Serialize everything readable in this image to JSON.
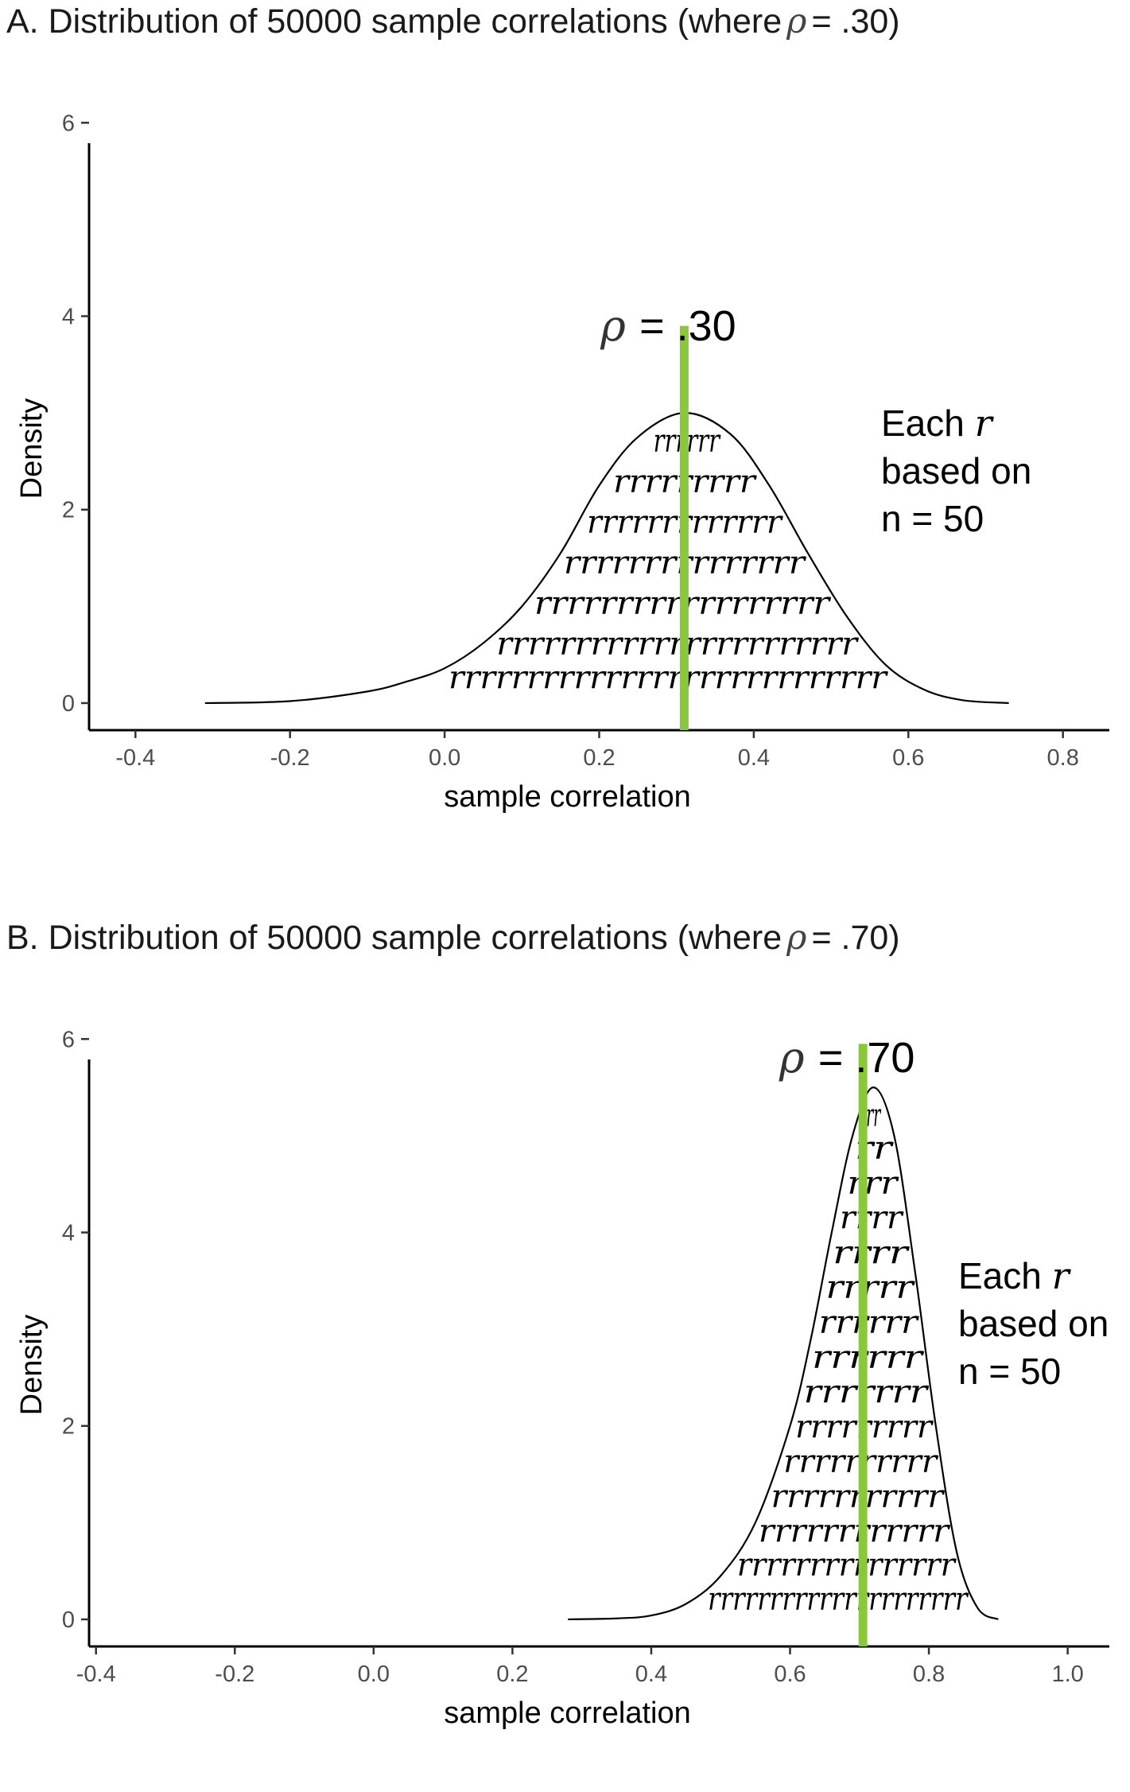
{
  "panels": [
    {
      "title_prefix": "A. Distribution of 50000 sample correlations (where",
      "title_rho": "ρ",
      "title_suffix": "= .30)"
    },
    {
      "title_prefix": "B. Distribution of 50000 sample correlations (where",
      "title_rho": "ρ",
      "title_suffix": "= .70)"
    }
  ],
  "chart_data": [
    {
      "type": "area",
      "xlabel": "sample correlation",
      "ylabel": "Density",
      "xlim": [
        -0.46,
        0.86
      ],
      "ylim": [
        -0.28,
        6.2
      ],
      "xticks": [
        "-0.4",
        "-0.2",
        "0.0",
        "0.2",
        "0.4",
        "0.6",
        "0.8"
      ],
      "xtick_values": [
        -0.4,
        -0.2,
        0.0,
        0.2,
        0.4,
        0.6,
        0.8
      ],
      "yticks": [
        "0",
        "2",
        "4",
        "6"
      ],
      "ytick_values": [
        0,
        2,
        4,
        6
      ],
      "grid": false,
      "rho": 0.31,
      "rho_label_symbol": "ρ",
      "rho_label_text": "= .30",
      "vline_top": 3.9,
      "vline_color": "#8cc63f",
      "density": {
        "x": [
          -0.31,
          -0.2,
          -0.1,
          -0.05,
          0.0,
          0.05,
          0.1,
          0.15,
          0.2,
          0.25,
          0.31,
          0.37,
          0.42,
          0.47,
          0.52,
          0.57,
          0.62,
          0.67,
          0.73
        ],
        "y": [
          0.0,
          0.02,
          0.12,
          0.22,
          0.36,
          0.62,
          1.0,
          1.55,
          2.25,
          2.75,
          3.0,
          2.78,
          2.25,
          1.55,
          0.9,
          0.4,
          0.14,
          0.03,
          0.0
        ]
      },
      "r_rows": [
        {
          "text": "rrrrrrrrrrrrrrrrrrrrrrrrrrrr",
          "y": 0.15
        },
        {
          "text": "rrrrrrrrrrrrrrrrrrrrrrr",
          "y": 0.5
        },
        {
          "text": "rrrrrrrrrrrrrrrrrr",
          "y": 0.92
        },
        {
          "text": "rrrrrrrrrrrrrrr",
          "y": 1.34
        },
        {
          "text": "rrrrrrrrrrrrr",
          "y": 1.76
        },
        {
          "text": "rrrrrrrrr",
          "y": 2.18
        },
        {
          "text": "rrrrrr",
          "y": 2.6
        }
      ],
      "annotation": {
        "line1_prefix": "Each",
        "line1_r": "r",
        "line2": "based on",
        "line3": "n = 50"
      }
    },
    {
      "type": "area",
      "xlabel": "sample correlation",
      "ylabel": "Density",
      "xlim": [
        -0.41,
        1.06
      ],
      "ylim": [
        -0.28,
        6.2
      ],
      "xticks": [
        "-0.4",
        "-0.2",
        "0.0",
        "0.2",
        "0.4",
        "0.6",
        "0.8",
        "1.0"
      ],
      "xtick_values": [
        -0.4,
        -0.2,
        0.0,
        0.2,
        0.4,
        0.6,
        0.8,
        1.0
      ],
      "yticks": [
        "0",
        "2",
        "4",
        "6"
      ],
      "ytick_values": [
        0,
        2,
        4,
        6
      ],
      "grid": false,
      "rho": 0.705,
      "rho_label_symbol": "ρ",
      "rho_label_text": "= .70",
      "vline_top": 5.95,
      "vline_color": "#8cc63f",
      "density": {
        "x": [
          0.28,
          0.35,
          0.4,
          0.45,
          0.5,
          0.55,
          0.6,
          0.63,
          0.66,
          0.69,
          0.72,
          0.75,
          0.78,
          0.81,
          0.84,
          0.87,
          0.9
        ],
        "y": [
          0.0,
          0.01,
          0.04,
          0.16,
          0.45,
          1.0,
          2.0,
          2.9,
          4.0,
          5.0,
          5.5,
          5.0,
          3.6,
          2.0,
          0.7,
          0.12,
          0.0
        ]
      },
      "r_rows": [
        {
          "text": "rrrrrrrrrrrrrrrrrrrrr",
          "y": 0.1
        },
        {
          "text": "rrrrrrrrrrrrrrr",
          "y": 0.45
        },
        {
          "text": "rrrrrrrrrrrr",
          "y": 0.8
        },
        {
          "text": "rrrrrrrrrrr",
          "y": 1.16
        },
        {
          "text": "rrrrrrrrrr",
          "y": 1.52
        },
        {
          "text": "rrrrrrrrr",
          "y": 1.88
        },
        {
          "text": "rrrrrrr",
          "y": 2.24
        },
        {
          "text": "rrrrrr",
          "y": 2.6
        },
        {
          "text": "rrrrrr",
          "y": 2.96
        },
        {
          "text": "rrrrr",
          "y": 3.32
        },
        {
          "text": "rrrr",
          "y": 3.68
        },
        {
          "text": "rrrr",
          "y": 4.04
        },
        {
          "text": "rrr",
          "y": 4.4
        },
        {
          "text": "rr",
          "y": 4.76
        },
        {
          "text": "rr",
          "y": 5.1
        }
      ],
      "annotation": {
        "line1_prefix": "Each",
        "line1_r": "r",
        "line2": "based on",
        "line3": "n = 50"
      }
    }
  ]
}
